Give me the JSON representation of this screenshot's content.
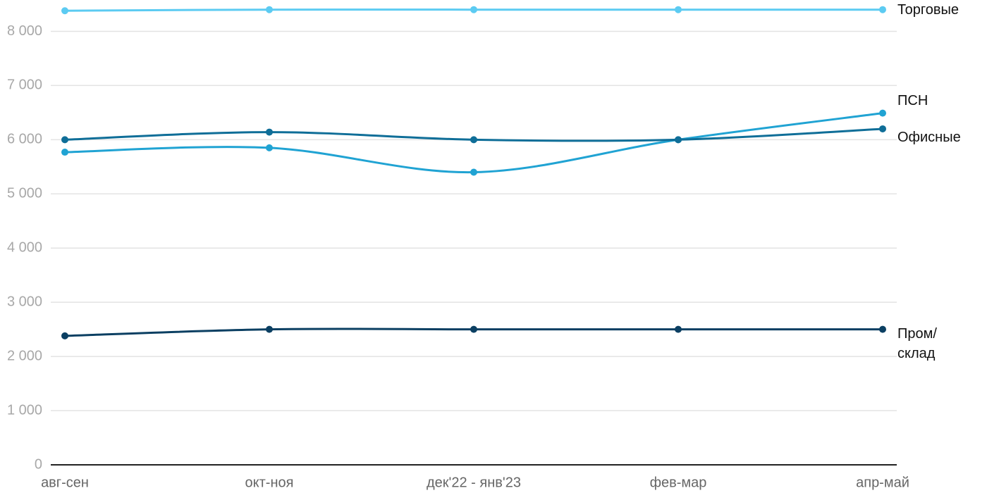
{
  "chart_data": {
    "type": "line",
    "categories": [
      "авг-сен",
      "окт-ноя",
      "дек'22 - янв'23",
      "фев-мар",
      "апр-май"
    ],
    "series": [
      {
        "name": "Торговые",
        "color": "#5ccbf2",
        "values": [
          8380,
          8400,
          8400,
          8400,
          8400
        ]
      },
      {
        "name": "ПСН",
        "color": "#20a3d3",
        "values": [
          5770,
          5850,
          5400,
          6000,
          6490
        ]
      },
      {
        "name": "Офисные",
        "color": "#0f6e98",
        "values": [
          6000,
          6140,
          6000,
          6000,
          6200
        ]
      },
      {
        "name": "Пром/\nсклад",
        "color": "#0b3f62",
        "values": [
          2380,
          2500,
          2500,
          2500,
          2500
        ]
      }
    ],
    "ylim": [
      0,
      8500
    ],
    "yticks": [
      0,
      {
        "value": 1000,
        "label": "1 000"
      },
      {
        "value": 2000,
        "label": "2 000"
      },
      {
        "value": 3000,
        "label": "3 000"
      },
      {
        "value": 4000,
        "label": "4 000"
      },
      {
        "value": 5000,
        "label": "5 000"
      },
      {
        "value": 6000,
        "label": "6 000"
      },
      {
        "value": 7000,
        "label": "7 000"
      },
      {
        "value": 8000,
        "label": "8 000"
      }
    ],
    "grid": true
  }
}
